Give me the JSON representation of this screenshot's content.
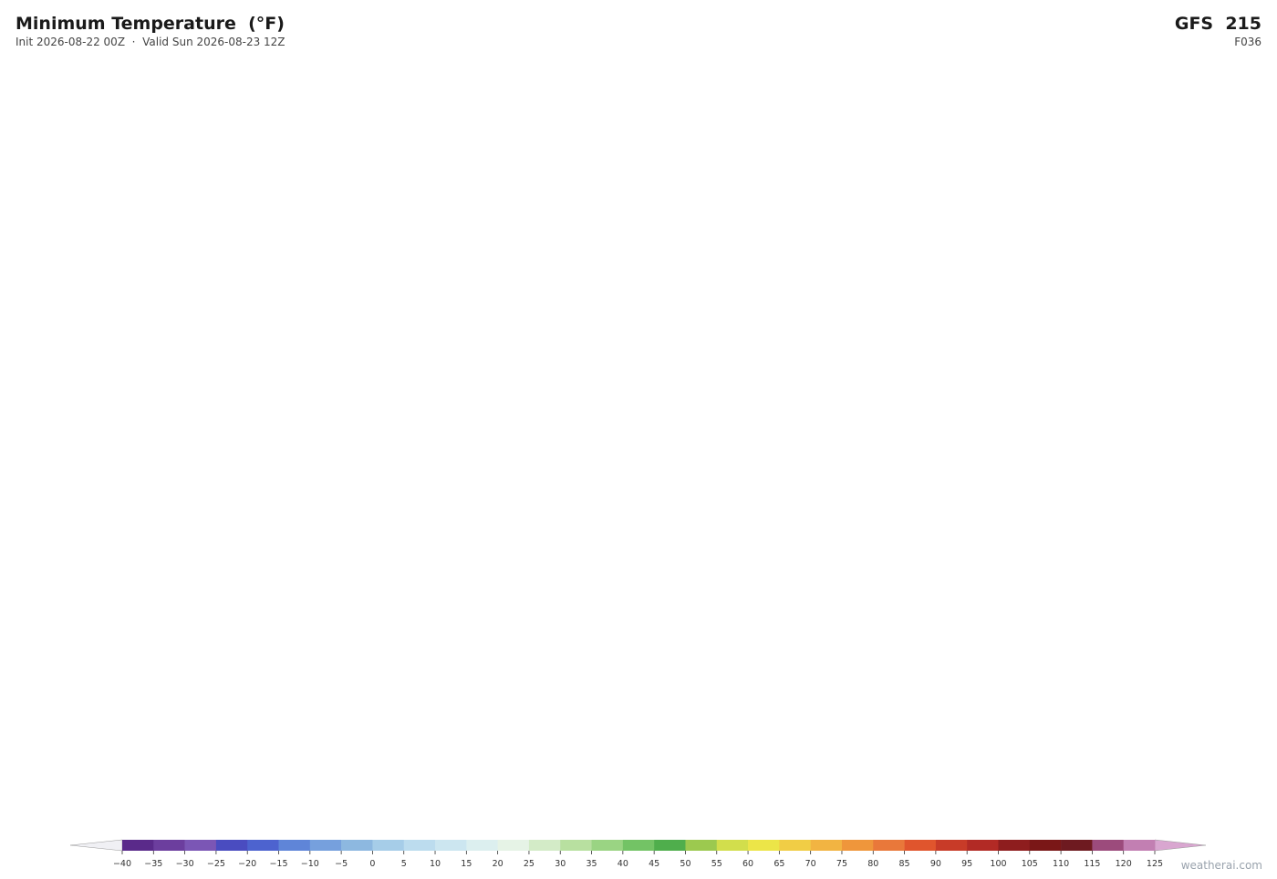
{
  "header": {
    "title": "Minimum Temperature  (°F)",
    "subtitle": "Init 2026-08-22 00Z  ·  Valid Sun 2026-08-23 12Z",
    "model": "GFS  215",
    "forecast_hour": "F036"
  },
  "colorbar": {
    "ticks": [
      {
        "value": -40,
        "label": "−40"
      },
      {
        "value": -35,
        "label": "−35"
      },
      {
        "value": -30,
        "label": "−30"
      },
      {
        "value": -25,
        "label": "−25"
      },
      {
        "value": -20,
        "label": "−20"
      },
      {
        "value": -15,
        "label": "−15"
      },
      {
        "value": -10,
        "label": "−10"
      },
      {
        "value": -5,
        "label": "−5"
      },
      0,
      5,
      10,
      15,
      20,
      25,
      30,
      35,
      40,
      45,
      50,
      55,
      60,
      65,
      70,
      75,
      80,
      85,
      90,
      95,
      100,
      105,
      110,
      115,
      120,
      125
    ],
    "colors": [
      "#5a2a8a",
      "#6c3e9e",
      "#7b56b5",
      "#4a4cc0",
      "#4d63cf",
      "#5f85d8",
      "#76a0dd",
      "#8db8e0",
      "#a6cde8",
      "#bcdcee",
      "#cce6f0",
      "#dcefef",
      "#e6f3e6",
      "#d3ebc7",
      "#b8e0a0",
      "#9ad483",
      "#73c365",
      "#4fae4c",
      "#9cc94f",
      "#d2de4c",
      "#ece548",
      "#f1cd45",
      "#f2b442",
      "#ef963b",
      "#e9783a",
      "#e0552d",
      "#c83b28",
      "#b22a25",
      "#8e1d1e",
      "#7a1717",
      "#6e1a20",
      "#9c4b7c",
      "#c27fb2"
    ],
    "under_color": "#f0f0f4",
    "over_color": "#d9a6d0"
  },
  "footer": {
    "credit": "weatherai.com"
  }
}
